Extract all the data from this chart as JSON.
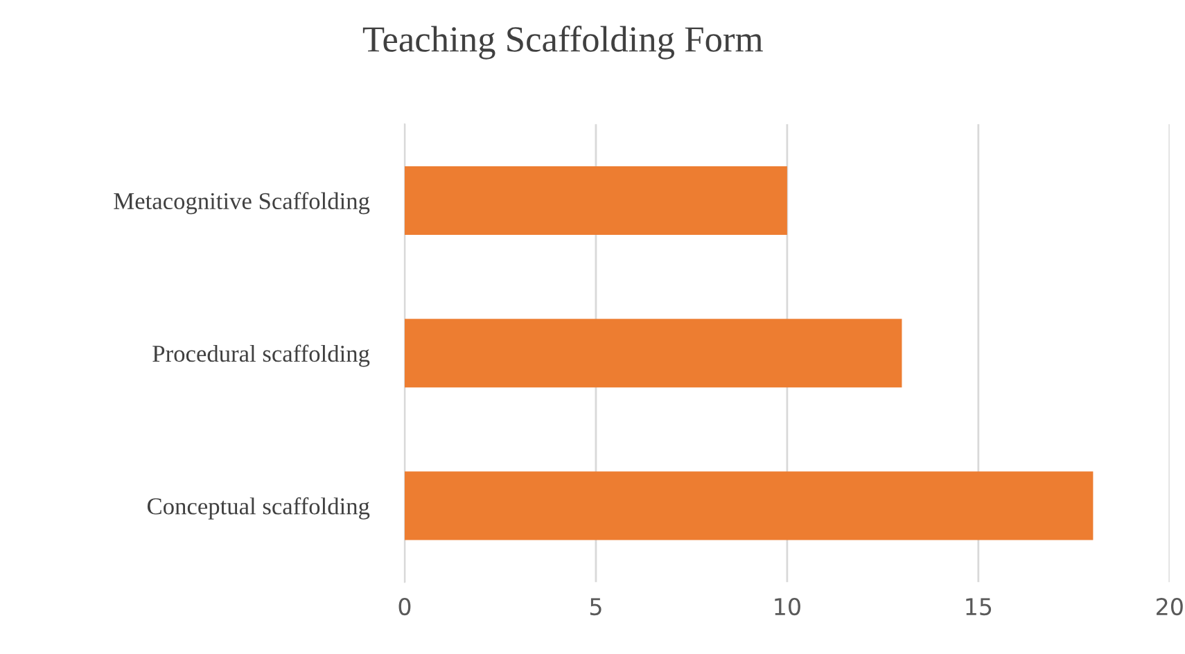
{
  "chart_data": {
    "type": "bar",
    "orientation": "horizontal",
    "title": "Teaching Scaffolding Form",
    "categories": [
      "Metacognitive Scaffolding",
      "Procedural scaffolding",
      "Conceptual scaffolding"
    ],
    "values": [
      10,
      13,
      18
    ],
    "color": "#ed7d31",
    "xlim": [
      0,
      20
    ],
    "xticks": [
      0,
      5,
      10,
      15,
      20
    ],
    "grid": "x",
    "legend": false
  }
}
